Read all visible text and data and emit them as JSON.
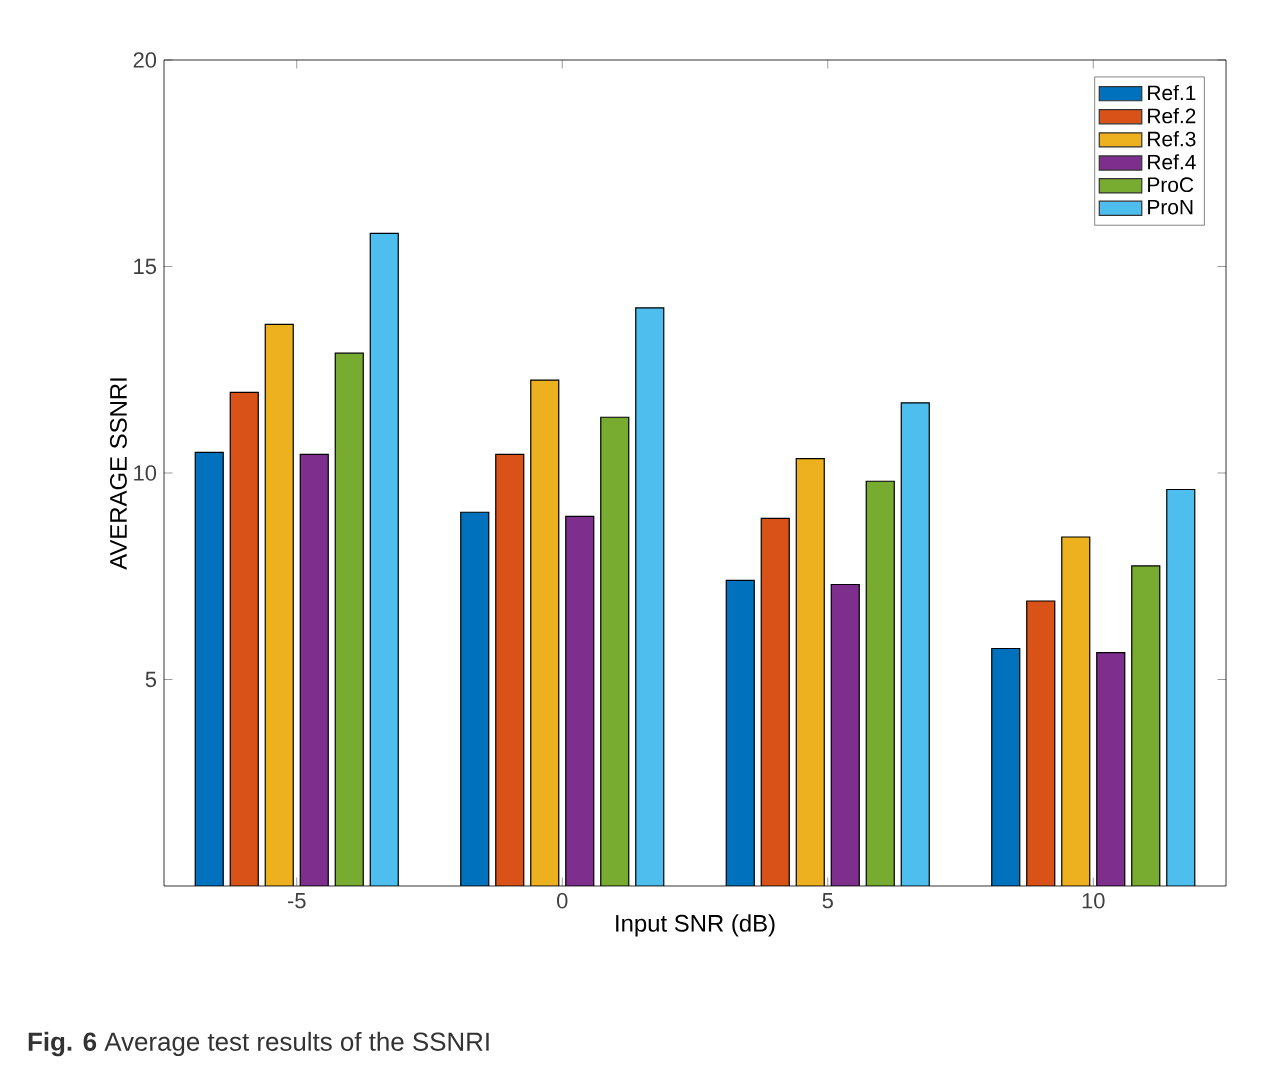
{
  "chart_data": {
    "type": "bar",
    "xlabel": "Input SNR (dB)",
    "ylabel": "AVERAGE SSNRI",
    "categories": [
      "-5",
      "0",
      "5",
      "10"
    ],
    "series": [
      {
        "name": "Ref.1",
        "color": "#0072bd",
        "values": [
          10.5,
          9.05,
          7.4,
          5.75
        ]
      },
      {
        "name": "Ref.2",
        "color": "#d95319",
        "values": [
          11.95,
          10.45,
          8.9,
          6.9
        ]
      },
      {
        "name": "Ref.3",
        "color": "#edb120",
        "values": [
          13.6,
          12.25,
          10.35,
          8.45
        ]
      },
      {
        "name": "Ref.4",
        "color": "#7e2f8e",
        "values": [
          10.45,
          8.95,
          7.3,
          5.65
        ]
      },
      {
        "name": "ProC",
        "color": "#77ac30",
        "values": [
          12.9,
          11.35,
          9.8,
          7.75
        ]
      },
      {
        "name": "ProN",
        "color": "#4dbeee",
        "values": [
          15.8,
          14.0,
          11.7,
          9.6
        ]
      }
    ],
    "ylim": [
      0,
      20
    ],
    "yticks": [
      5,
      10,
      15,
      20
    ],
    "grid": false,
    "legend": "top right",
    "annotations": [
      "**Fig. 6** Average test results of the SSNRI"
    ]
  }
}
